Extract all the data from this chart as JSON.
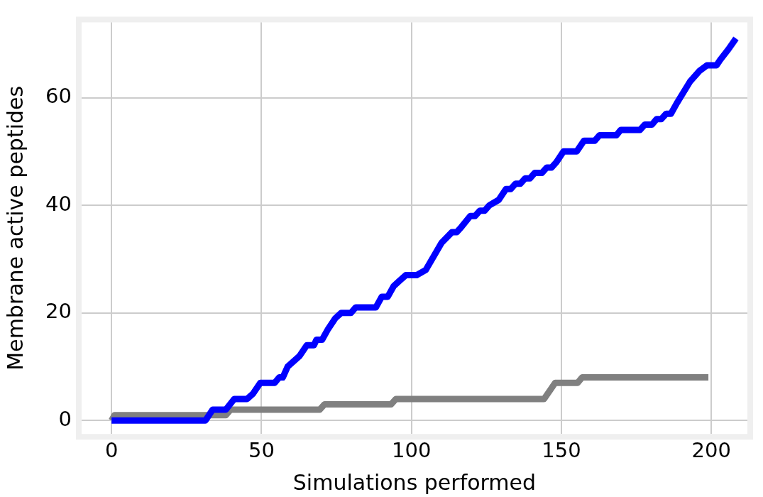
{
  "chart_data": {
    "type": "line",
    "xlabel": "Simulations performed",
    "ylabel": "Membrane active peptides",
    "xlim": [
      -10,
      212
    ],
    "ylim": [
      -2.5,
      74
    ],
    "xticks": [
      0,
      50,
      100,
      150,
      200
    ],
    "yticks": [
      0,
      20,
      40,
      60
    ],
    "grid": true,
    "legend": false,
    "marker": "none",
    "series": [
      {
        "color": "#0000ff",
        "x": [
          0,
          31.3,
          33.7,
          38.1,
          40.9,
          45.2,
          47.2,
          49.6,
          54.4,
          55.9,
          57.1,
          58.7,
          60.7,
          62.7,
          65.1,
          67.5,
          68.3,
          70.2,
          72.2,
          74.6,
          76.6,
          79.8,
          81.4,
          88.1,
          90.1,
          92.1,
          94.1,
          96.1,
          98.1,
          101.7,
          104.8,
          110,
          113.5,
          115.1,
          116.7,
          119.6,
          121.2,
          122.8,
          124.4,
          126,
          129.1,
          131.5,
          133.1,
          134.7,
          136.3,
          137.9,
          139.5,
          141.1,
          143.5,
          145.1,
          146.7,
          148.3,
          150.7,
          155.1,
          157.5,
          161.1,
          162.7,
          168.3,
          169.8,
          176.2,
          177.8,
          180.2,
          181.7,
          183.3,
          184.9,
          186.5,
          188.5,
          192.9,
          196.1,
          198.5,
          201.7,
          202.9,
          205.7,
          208.2
        ],
        "values": [
          0,
          0,
          2,
          2,
          4,
          4,
          5,
          7,
          7,
          8,
          8,
          10,
          11,
          12,
          14,
          14,
          15,
          15,
          17,
          19,
          20,
          20,
          21,
          21,
          23,
          23,
          25,
          26,
          27,
          27,
          28,
          33,
          35,
          35,
          36,
          38,
          38,
          39,
          39,
          40,
          41,
          43,
          43,
          44,
          44,
          45,
          45,
          46,
          46,
          47,
          47,
          48,
          50,
          50,
          52,
          52,
          53,
          53,
          54,
          54,
          55,
          55,
          56,
          56,
          57,
          57,
          59,
          63,
          65,
          66,
          66,
          67,
          69,
          71
        ]
      },
      {
        "color": "#808080",
        "x": [
          0,
          1,
          38.1,
          39.7,
          69.4,
          71,
          93.2,
          94.8,
          144.2,
          147.9,
          155.4,
          156.9,
          199
        ],
        "values": [
          0,
          1,
          1,
          2,
          2,
          3,
          3,
          4,
          4,
          7,
          7,
          8,
          8
        ]
      }
    ]
  }
}
